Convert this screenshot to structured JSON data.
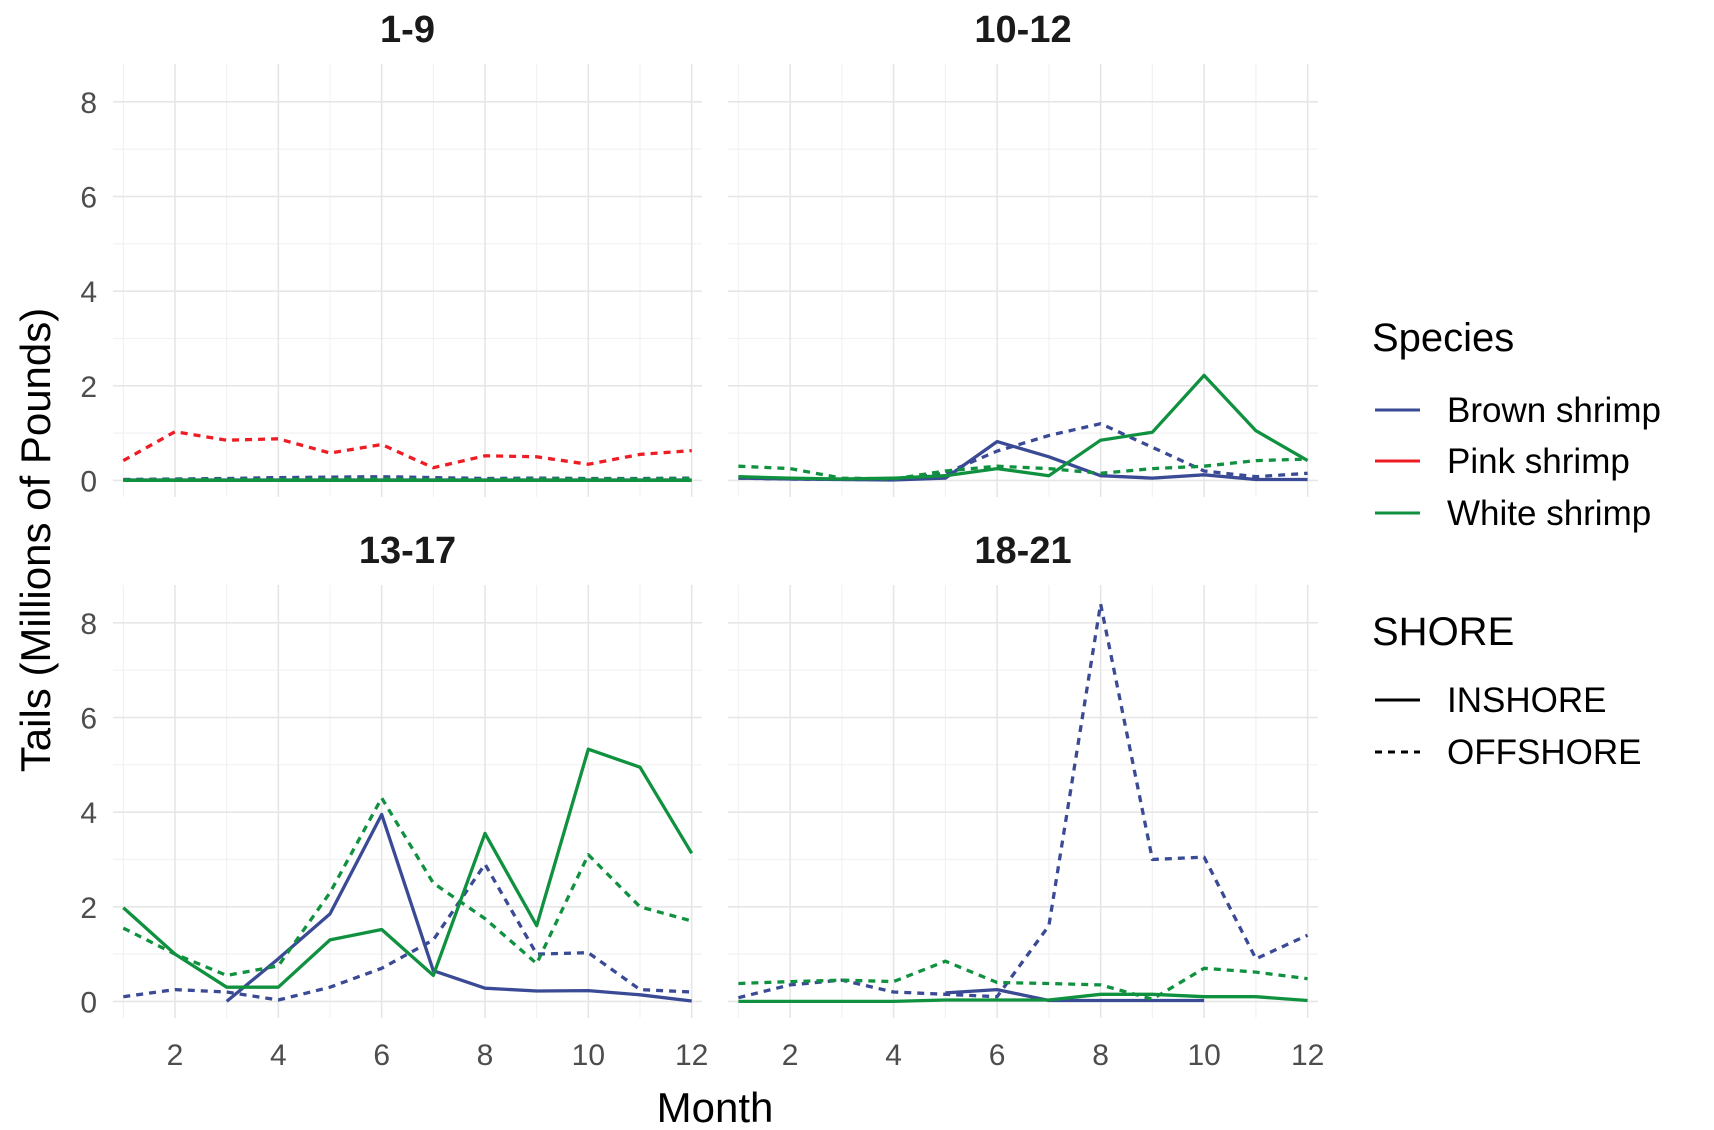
{
  "chart_data": {
    "type": "line",
    "ylabel": "Tails (Millions of Pounds)",
    "xlabel": "Month",
    "xlim": [
      0.8,
      12.2
    ],
    "ylim": [
      -0.35,
      8.8
    ],
    "x_ticks": [
      2,
      4,
      6,
      8,
      10,
      12
    ],
    "x_tick_labels": [
      "2",
      "4",
      "6",
      "8",
      "10",
      "12"
    ],
    "y_ticks": [
      0,
      2,
      4,
      6,
      8
    ],
    "y_tick_labels": [
      "0",
      "2",
      "4",
      "6",
      "8"
    ],
    "grid": true,
    "legend_position": "right",
    "species": [
      {
        "name": "Brown shrimp",
        "color": "#3b4a95"
      },
      {
        "name": "Pink shrimp",
        "color": "#ee1c24"
      },
      {
        "name": "White shrimp",
        "color": "#10913f"
      }
    ],
    "shore": [
      {
        "name": "INSHORE",
        "dash": "solid"
      },
      {
        "name": "OFFSHORE",
        "dash": "dashed"
      }
    ],
    "legend": {
      "species_title": "Species",
      "shore_title": "SHORE"
    },
    "panels": [
      {
        "title": "1-9",
        "series": [
          {
            "species": "Brown shrimp",
            "shore": "INSHORE",
            "x": [
              1,
              2,
              3,
              4,
              5,
              6,
              7,
              8,
              9,
              10,
              11,
              12
            ],
            "y": [
              0.01,
              0.01,
              0.01,
              0.01,
              0.01,
              0.01,
              0.01,
              0.01,
              0.01,
              0.01,
              0.01,
              0.01
            ]
          },
          {
            "species": "Brown shrimp",
            "shore": "OFFSHORE",
            "x": [
              1,
              2,
              3,
              4,
              5,
              6,
              7,
              8,
              9,
              10,
              11,
              12
            ],
            "y": [
              0.02,
              0.03,
              0.04,
              0.06,
              0.07,
              0.08,
              0.06,
              0.04,
              0.05,
              0.04,
              0.04,
              0.05
            ]
          },
          {
            "species": "Pink shrimp",
            "shore": "OFFSHORE",
            "x": [
              1,
              2,
              3,
              4,
              5,
              6,
              7,
              8,
              9,
              10,
              11,
              12
            ],
            "y": [
              0.42,
              1.03,
              0.85,
              0.88,
              0.58,
              0.76,
              0.27,
              0.52,
              0.5,
              0.34,
              0.55,
              0.63
            ]
          },
          {
            "species": "White shrimp",
            "shore": "INSHORE",
            "x": [
              1,
              2,
              3,
              4,
              5,
              6,
              7,
              8,
              9,
              10,
              11,
              12
            ],
            "y": [
              0.0,
              0.0,
              0.0,
              0.0,
              0.0,
              0.0,
              0.0,
              0.0,
              0.0,
              0.0,
              0.0,
              0.0
            ]
          },
          {
            "species": "White shrimp",
            "shore": "OFFSHORE",
            "x": [
              1,
              2,
              3,
              4,
              5,
              6,
              7,
              8,
              9,
              10,
              11,
              12
            ],
            "y": [
              0.01,
              0.02,
              0.02,
              0.02,
              0.03,
              0.03,
              0.02,
              0.02,
              0.03,
              0.03,
              0.03,
              0.04
            ]
          }
        ]
      },
      {
        "title": "10-12",
        "series": [
          {
            "species": "Brown shrimp",
            "shore": "INSHORE",
            "x": [
              1,
              2,
              3,
              4,
              5,
              6,
              7,
              8,
              9,
              10,
              11,
              12
            ],
            "y": [
              0.05,
              0.03,
              0.02,
              0.01,
              0.05,
              0.82,
              0.5,
              0.1,
              0.05,
              0.12,
              0.02,
              0.02
            ]
          },
          {
            "species": "Brown shrimp",
            "shore": "OFFSHORE",
            "x": [
              1,
              2,
              3,
              4,
              5,
              6,
              7,
              8,
              9,
              10,
              11,
              12
            ],
            "y": [
              0.05,
              0.03,
              0.02,
              0.02,
              0.15,
              0.62,
              0.95,
              1.2,
              0.7,
              0.2,
              0.08,
              0.15
            ]
          },
          {
            "species": "White shrimp",
            "shore": "INSHORE",
            "x": [
              1,
              2,
              3,
              4,
              5,
              6,
              7,
              8,
              9,
              10,
              11,
              12
            ],
            "y": [
              0.08,
              0.05,
              0.03,
              0.05,
              0.1,
              0.25,
              0.1,
              0.85,
              1.02,
              2.22,
              1.05,
              0.42
            ]
          },
          {
            "species": "White shrimp",
            "shore": "OFFSHORE",
            "x": [
              1,
              2,
              3,
              4,
              5,
              6,
              7,
              8,
              9,
              10,
              11,
              12
            ],
            "y": [
              0.3,
              0.25,
              0.05,
              0.03,
              0.2,
              0.3,
              0.25,
              0.15,
              0.25,
              0.3,
              0.42,
              0.45
            ]
          }
        ]
      },
      {
        "title": "13-17",
        "series": [
          {
            "species": "Brown shrimp",
            "shore": "INSHORE",
            "x": [
              3,
              4,
              5,
              6,
              7,
              8,
              9,
              10,
              11,
              12
            ],
            "y": [
              0.0,
              0.9,
              1.85,
              3.95,
              0.65,
              0.28,
              0.22,
              0.23,
              0.14,
              0.01
            ]
          },
          {
            "species": "Brown shrimp",
            "shore": "OFFSHORE",
            "x": [
              1,
              2,
              3,
              4,
              5,
              6,
              7,
              8,
              9,
              10,
              11,
              12
            ],
            "y": [
              0.1,
              0.25,
              0.2,
              0.03,
              0.3,
              0.7,
              1.3,
              2.9,
              1.0,
              1.03,
              0.25,
              0.2
            ]
          },
          {
            "species": "White shrimp",
            "shore": "INSHORE",
            "x": [
              1,
              2,
              3,
              4,
              5,
              6,
              7,
              8,
              9,
              10,
              11,
              12
            ],
            "y": [
              1.98,
              1.0,
              0.3,
              0.3,
              1.3,
              1.52,
              0.55,
              3.55,
              1.6,
              5.33,
              4.95,
              3.13
            ]
          },
          {
            "species": "White shrimp",
            "shore": "OFFSHORE",
            "x": [
              1,
              2,
              3,
              4,
              5,
              6,
              7,
              8,
              9,
              10,
              11,
              12
            ],
            "y": [
              1.55,
              1.0,
              0.55,
              0.75,
              2.3,
              4.3,
              2.5,
              1.75,
              0.8,
              3.1,
              2.0,
              1.7
            ]
          }
        ]
      },
      {
        "title": "18-21",
        "series": [
          {
            "species": "Brown shrimp",
            "shore": "INSHORE",
            "x": [
              5,
              6,
              7,
              8,
              9,
              10
            ],
            "y": [
              0.18,
              0.25,
              0.02,
              0.02,
              0.02,
              0.02
            ]
          },
          {
            "species": "Brown shrimp",
            "shore": "OFFSHORE",
            "x": [
              1,
              2,
              3,
              4,
              5,
              6,
              7,
              8,
              9,
              10,
              11,
              12
            ],
            "y": [
              0.08,
              0.35,
              0.45,
              0.2,
              0.15,
              0.1,
              1.6,
              8.4,
              3.0,
              3.05,
              0.9,
              1.4
            ]
          },
          {
            "species": "White shrimp",
            "shore": "INSHORE",
            "x": [
              1,
              2,
              3,
              4,
              5,
              6,
              7,
              8,
              9,
              10,
              11,
              12
            ],
            "y": [
              0.0,
              0.0,
              0.0,
              0.0,
              0.03,
              0.03,
              0.03,
              0.15,
              0.15,
              0.1,
              0.1,
              0.02
            ]
          },
          {
            "species": "White shrimp",
            "shore": "OFFSHORE",
            "x": [
              1,
              2,
              3,
              4,
              5,
              6,
              7,
              8,
              9,
              10,
              11,
              12
            ],
            "y": [
              0.38,
              0.42,
              0.45,
              0.42,
              0.85,
              0.4,
              0.38,
              0.35,
              0.05,
              0.7,
              0.62,
              0.48
            ]
          }
        ]
      }
    ]
  }
}
